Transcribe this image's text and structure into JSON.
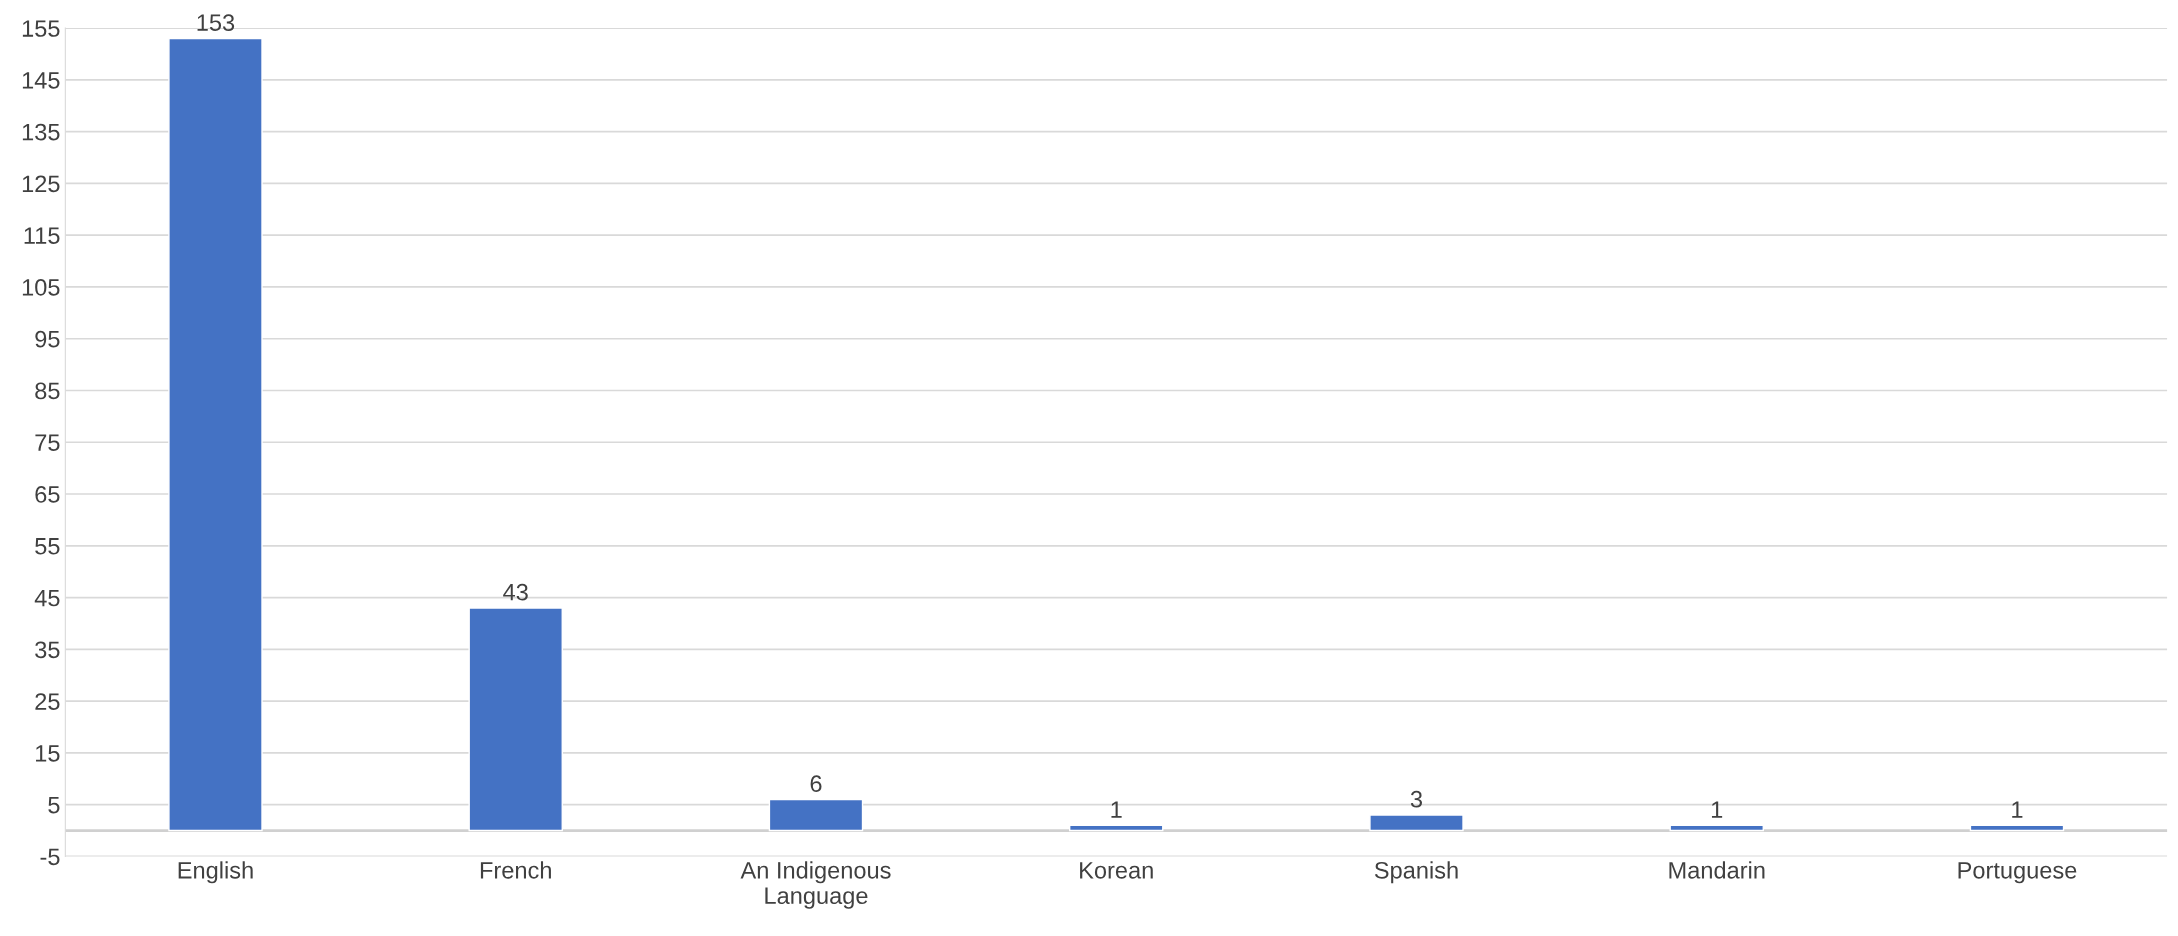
{
  "chart_data": {
    "type": "bar",
    "categories": [
      "English",
      "French",
      "An Indigenous\nLanguage",
      "Korean",
      "Spanish",
      "Mandarin",
      "Portuguese"
    ],
    "values": [
      153,
      43,
      6,
      1,
      3,
      1,
      1
    ],
    "color": "#4472c4",
    "ylim": [
      -5,
      155
    ],
    "yticks": [
      -5,
      5,
      15,
      25,
      35,
      45,
      55,
      65,
      75,
      85,
      95,
      105,
      115,
      125,
      135,
      145,
      155
    ],
    "grid": "y",
    "data_labels": true
  }
}
